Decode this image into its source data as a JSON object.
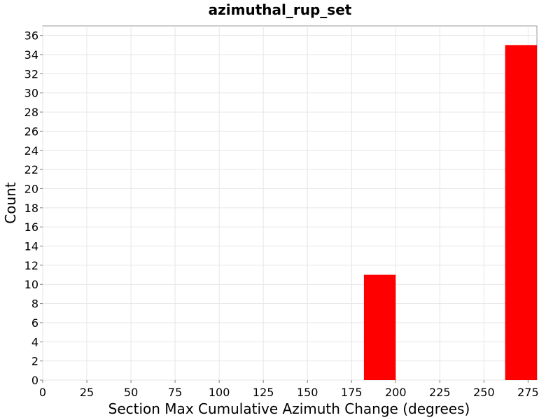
{
  "chart_data": {
    "type": "bar",
    "title": "azimuthal_rup_set",
    "xlabel": "Section Max Cumulative Azimuth Change (degrees)",
    "ylabel": "Count",
    "xlim": [
      0,
      280
    ],
    "ylim": [
      0,
      37
    ],
    "xticks": [
      0,
      25,
      50,
      75,
      100,
      125,
      150,
      175,
      200,
      225,
      250,
      275
    ],
    "yticks": [
      0,
      2,
      4,
      6,
      8,
      10,
      12,
      14,
      16,
      18,
      20,
      22,
      24,
      26,
      28,
      30,
      32,
      34,
      36
    ],
    "bars": [
      {
        "x0": 182,
        "x1": 200,
        "value": 11
      },
      {
        "x0": 262,
        "x1": 280,
        "value": 35
      }
    ],
    "bar_color": "#ff0000",
    "grid": true
  }
}
